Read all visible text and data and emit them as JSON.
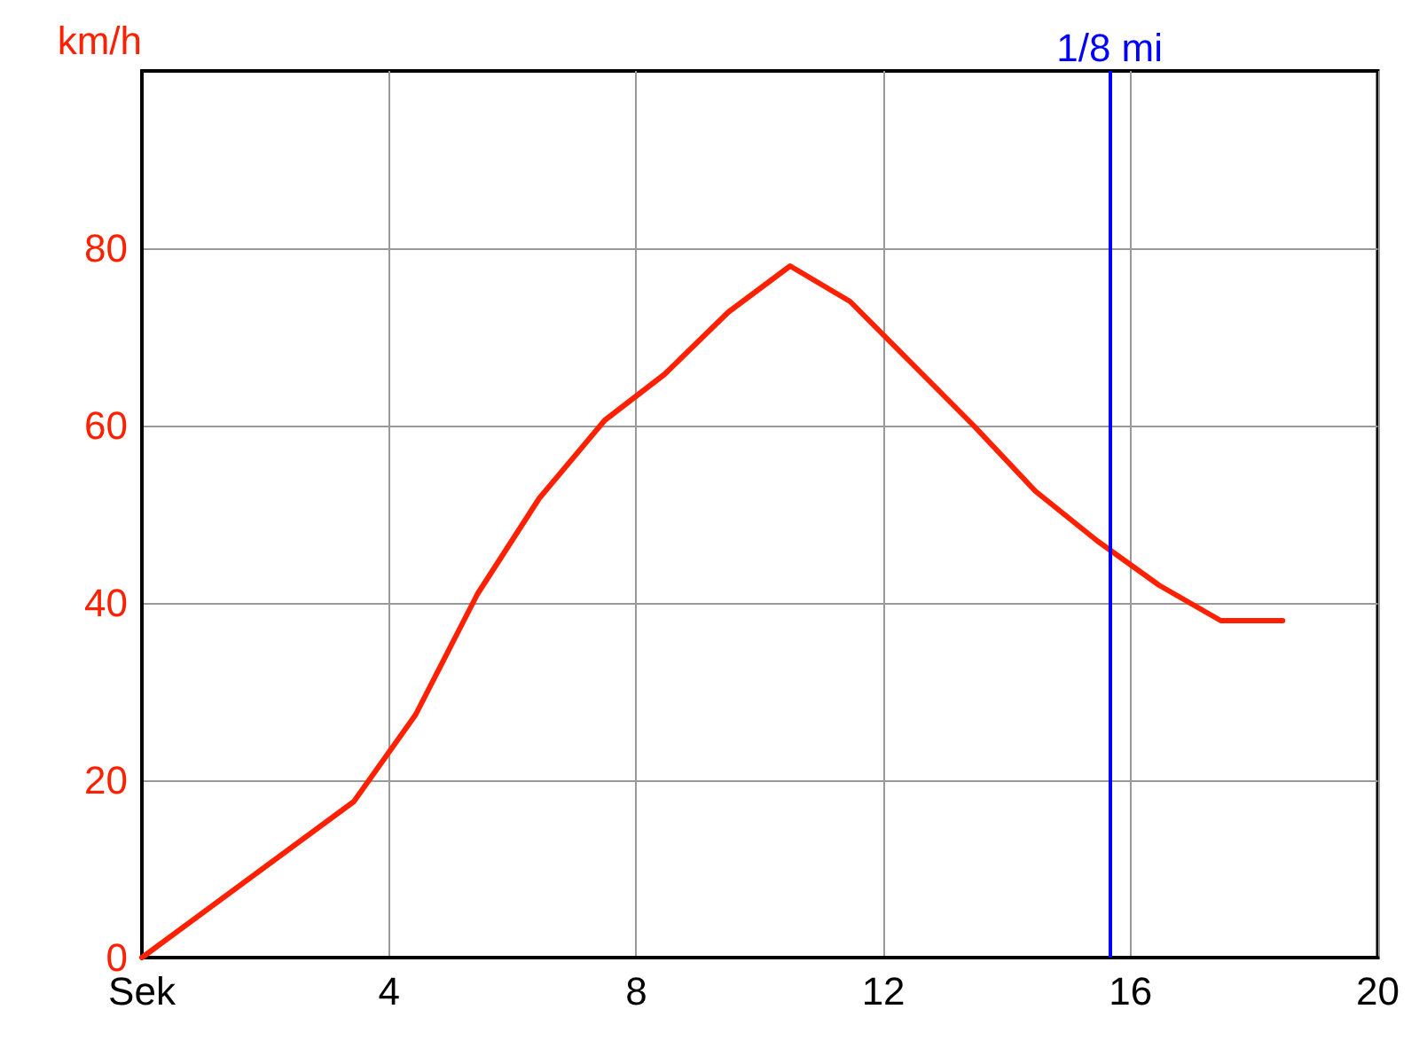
{
  "chart_data": {
    "type": "line",
    "ylabel": "km/h",
    "x": [
      0,
      3.43,
      4.43,
      5.43,
      6.43,
      7.49,
      8.46,
      9.49,
      10.49,
      11.46,
      12.46,
      13.46,
      14.46,
      15.46,
      16.46,
      17.46,
      18.46
    ],
    "series": [
      {
        "color": "#ff2000",
        "values": [
          0,
          17.6,
          27.4,
          41,
          51.8,
          60.6,
          65.8,
          72.8,
          78,
          74,
          67,
          60,
          52.6,
          47,
          42,
          38,
          38
        ]
      }
    ],
    "xlim": [
      0,
      20
    ],
    "xticks": [
      {
        "value": 0,
        "label": "Sek"
      },
      4,
      8,
      12,
      16,
      20
    ],
    "ylim": [
      0,
      100
    ],
    "yticks": [
      0,
      20,
      40,
      60,
      80
    ],
    "ref_lines": [
      {
        "axis": "x",
        "value": 15.66,
        "label": "1/8 mi",
        "color": "#0000ff"
      }
    ],
    "grid": true,
    "marker": "none",
    "line_style": "solid"
  }
}
